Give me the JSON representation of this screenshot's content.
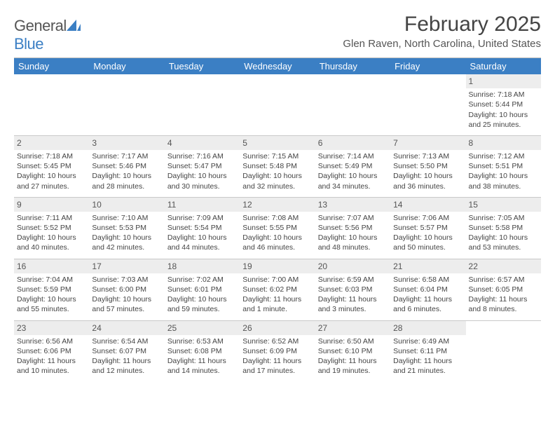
{
  "logo": {
    "word1": "General",
    "word2": "Blue"
  },
  "title": "February 2025",
  "location": "Glen Raven, North Carolina, United States",
  "colors": {
    "header_bg": "#3b7fc4",
    "header_text": "#ffffff",
    "daynum_bg": "#ededed",
    "border": "#c9c9c9",
    "text": "#444444",
    "page_bg": "#ffffff"
  },
  "day_headers": [
    "Sunday",
    "Monday",
    "Tuesday",
    "Wednesday",
    "Thursday",
    "Friday",
    "Saturday"
  ],
  "weeks": [
    [
      {
        "n": "",
        "sr": "",
        "ss": "",
        "dl": ""
      },
      {
        "n": "",
        "sr": "",
        "ss": "",
        "dl": ""
      },
      {
        "n": "",
        "sr": "",
        "ss": "",
        "dl": ""
      },
      {
        "n": "",
        "sr": "",
        "ss": "",
        "dl": ""
      },
      {
        "n": "",
        "sr": "",
        "ss": "",
        "dl": ""
      },
      {
        "n": "",
        "sr": "",
        "ss": "",
        "dl": ""
      },
      {
        "n": "1",
        "sr": "Sunrise: 7:18 AM",
        "ss": "Sunset: 5:44 PM",
        "dl": "Daylight: 10 hours and 25 minutes."
      }
    ],
    [
      {
        "n": "2",
        "sr": "Sunrise: 7:18 AM",
        "ss": "Sunset: 5:45 PM",
        "dl": "Daylight: 10 hours and 27 minutes."
      },
      {
        "n": "3",
        "sr": "Sunrise: 7:17 AM",
        "ss": "Sunset: 5:46 PM",
        "dl": "Daylight: 10 hours and 28 minutes."
      },
      {
        "n": "4",
        "sr": "Sunrise: 7:16 AM",
        "ss": "Sunset: 5:47 PM",
        "dl": "Daylight: 10 hours and 30 minutes."
      },
      {
        "n": "5",
        "sr": "Sunrise: 7:15 AM",
        "ss": "Sunset: 5:48 PM",
        "dl": "Daylight: 10 hours and 32 minutes."
      },
      {
        "n": "6",
        "sr": "Sunrise: 7:14 AM",
        "ss": "Sunset: 5:49 PM",
        "dl": "Daylight: 10 hours and 34 minutes."
      },
      {
        "n": "7",
        "sr": "Sunrise: 7:13 AM",
        "ss": "Sunset: 5:50 PM",
        "dl": "Daylight: 10 hours and 36 minutes."
      },
      {
        "n": "8",
        "sr": "Sunrise: 7:12 AM",
        "ss": "Sunset: 5:51 PM",
        "dl": "Daylight: 10 hours and 38 minutes."
      }
    ],
    [
      {
        "n": "9",
        "sr": "Sunrise: 7:11 AM",
        "ss": "Sunset: 5:52 PM",
        "dl": "Daylight: 10 hours and 40 minutes."
      },
      {
        "n": "10",
        "sr": "Sunrise: 7:10 AM",
        "ss": "Sunset: 5:53 PM",
        "dl": "Daylight: 10 hours and 42 minutes."
      },
      {
        "n": "11",
        "sr": "Sunrise: 7:09 AM",
        "ss": "Sunset: 5:54 PM",
        "dl": "Daylight: 10 hours and 44 minutes."
      },
      {
        "n": "12",
        "sr": "Sunrise: 7:08 AM",
        "ss": "Sunset: 5:55 PM",
        "dl": "Daylight: 10 hours and 46 minutes."
      },
      {
        "n": "13",
        "sr": "Sunrise: 7:07 AM",
        "ss": "Sunset: 5:56 PM",
        "dl": "Daylight: 10 hours and 48 minutes."
      },
      {
        "n": "14",
        "sr": "Sunrise: 7:06 AM",
        "ss": "Sunset: 5:57 PM",
        "dl": "Daylight: 10 hours and 50 minutes."
      },
      {
        "n": "15",
        "sr": "Sunrise: 7:05 AM",
        "ss": "Sunset: 5:58 PM",
        "dl": "Daylight: 10 hours and 53 minutes."
      }
    ],
    [
      {
        "n": "16",
        "sr": "Sunrise: 7:04 AM",
        "ss": "Sunset: 5:59 PM",
        "dl": "Daylight: 10 hours and 55 minutes."
      },
      {
        "n": "17",
        "sr": "Sunrise: 7:03 AM",
        "ss": "Sunset: 6:00 PM",
        "dl": "Daylight: 10 hours and 57 minutes."
      },
      {
        "n": "18",
        "sr": "Sunrise: 7:02 AM",
        "ss": "Sunset: 6:01 PM",
        "dl": "Daylight: 10 hours and 59 minutes."
      },
      {
        "n": "19",
        "sr": "Sunrise: 7:00 AM",
        "ss": "Sunset: 6:02 PM",
        "dl": "Daylight: 11 hours and 1 minute."
      },
      {
        "n": "20",
        "sr": "Sunrise: 6:59 AM",
        "ss": "Sunset: 6:03 PM",
        "dl": "Daylight: 11 hours and 3 minutes."
      },
      {
        "n": "21",
        "sr": "Sunrise: 6:58 AM",
        "ss": "Sunset: 6:04 PM",
        "dl": "Daylight: 11 hours and 6 minutes."
      },
      {
        "n": "22",
        "sr": "Sunrise: 6:57 AM",
        "ss": "Sunset: 6:05 PM",
        "dl": "Daylight: 11 hours and 8 minutes."
      }
    ],
    [
      {
        "n": "23",
        "sr": "Sunrise: 6:56 AM",
        "ss": "Sunset: 6:06 PM",
        "dl": "Daylight: 11 hours and 10 minutes."
      },
      {
        "n": "24",
        "sr": "Sunrise: 6:54 AM",
        "ss": "Sunset: 6:07 PM",
        "dl": "Daylight: 11 hours and 12 minutes."
      },
      {
        "n": "25",
        "sr": "Sunrise: 6:53 AM",
        "ss": "Sunset: 6:08 PM",
        "dl": "Daylight: 11 hours and 14 minutes."
      },
      {
        "n": "26",
        "sr": "Sunrise: 6:52 AM",
        "ss": "Sunset: 6:09 PM",
        "dl": "Daylight: 11 hours and 17 minutes."
      },
      {
        "n": "27",
        "sr": "Sunrise: 6:50 AM",
        "ss": "Sunset: 6:10 PM",
        "dl": "Daylight: 11 hours and 19 minutes."
      },
      {
        "n": "28",
        "sr": "Sunrise: 6:49 AM",
        "ss": "Sunset: 6:11 PM",
        "dl": "Daylight: 11 hours and 21 minutes."
      },
      {
        "n": "",
        "sr": "",
        "ss": "",
        "dl": ""
      }
    ]
  ]
}
